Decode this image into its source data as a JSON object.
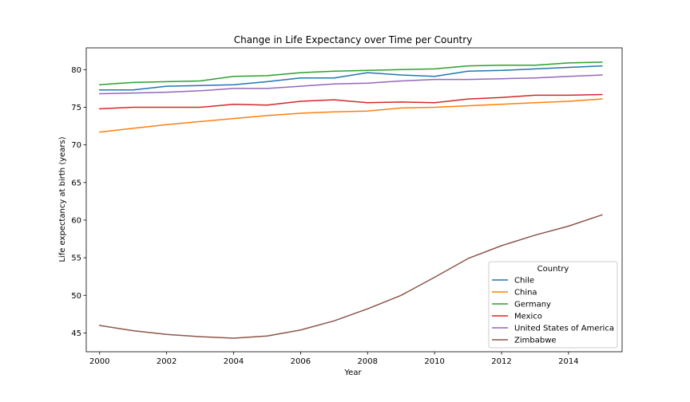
{
  "chart_data": {
    "type": "line",
    "title": "Change in Life Expectancy over Time per Country",
    "xlabel": "Year",
    "ylabel": "Life expectancy at birth (years)",
    "xlim": [
      1999.6,
      2015.6
    ],
    "ylim": [
      42.5,
      82.9
    ],
    "x_ticks": [
      2000,
      2002,
      2004,
      2006,
      2008,
      2010,
      2012,
      2014
    ],
    "y_ticks": [
      45,
      50,
      55,
      60,
      65,
      70,
      75,
      80
    ],
    "grid": false,
    "legend": {
      "title": "Country",
      "placement": "lower-right"
    },
    "x": [
      2000,
      2001,
      2002,
      2003,
      2004,
      2005,
      2006,
      2007,
      2008,
      2009,
      2010,
      2011,
      2012,
      2013,
      2014,
      2015
    ],
    "series": [
      {
        "name": "Chile",
        "color": "#1f77b4",
        "values": [
          77.3,
          77.3,
          77.8,
          77.9,
          78.0,
          78.4,
          78.9,
          78.9,
          79.6,
          79.3,
          79.1,
          79.8,
          79.9,
          80.1,
          80.3,
          80.5
        ]
      },
      {
        "name": "China",
        "color": "#ff7f0e",
        "values": [
          71.7,
          72.2,
          72.7,
          73.1,
          73.5,
          73.9,
          74.2,
          74.4,
          74.5,
          74.9,
          75.0,
          75.2,
          75.4,
          75.6,
          75.8,
          76.1
        ]
      },
      {
        "name": "Germany",
        "color": "#2ca02c",
        "values": [
          78.0,
          78.3,
          78.4,
          78.5,
          79.1,
          79.2,
          79.6,
          79.8,
          79.9,
          80.0,
          80.1,
          80.5,
          80.6,
          80.6,
          80.9,
          81.0
        ]
      },
      {
        "name": "Mexico",
        "color": "#d62728",
        "values": [
          74.8,
          75.0,
          75.0,
          75.0,
          75.4,
          75.3,
          75.8,
          76.0,
          75.6,
          75.7,
          75.6,
          76.1,
          76.3,
          76.6,
          76.6,
          76.7
        ]
      },
      {
        "name": "United States of America",
        "color": "#9467bd",
        "values": [
          76.8,
          76.9,
          77.0,
          77.2,
          77.5,
          77.5,
          77.8,
          78.1,
          78.2,
          78.5,
          78.7,
          78.7,
          78.8,
          78.9,
          79.1,
          79.3
        ]
      },
      {
        "name": "Zimbabwe",
        "color": "#8c564b",
        "values": [
          46.0,
          45.3,
          44.8,
          44.5,
          44.3,
          44.6,
          45.4,
          46.6,
          48.2,
          50.0,
          52.4,
          54.9,
          56.6,
          58.0,
          59.2,
          60.7
        ]
      }
    ]
  }
}
